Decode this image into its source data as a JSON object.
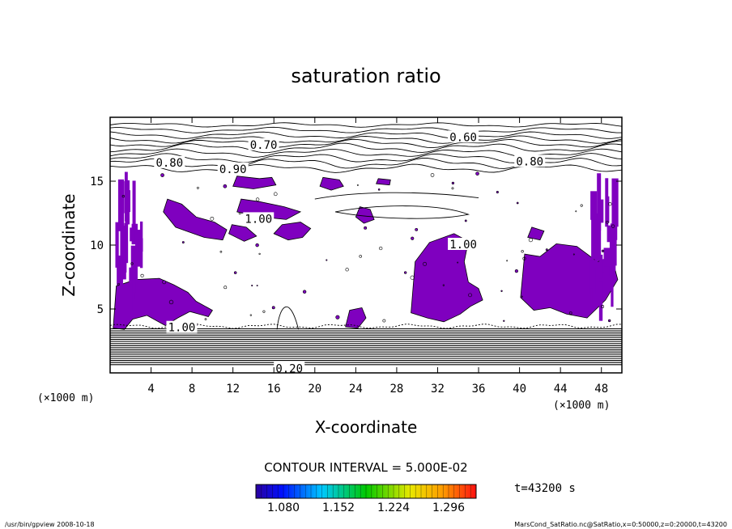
{
  "chart_data": {
    "type": "heatmap",
    "title": "saturation ratio",
    "xlabel": "X-coordinate",
    "ylabel": "Z-coordinate",
    "x_unit": "(×1000 m)",
    "y_unit": "(×1000 m)",
    "xlim": [
      0,
      50
    ],
    "ylim": [
      0,
      20
    ],
    "x_ticks": [
      4,
      8,
      12,
      16,
      20,
      24,
      28,
      32,
      36,
      40,
      44,
      48
    ],
    "y_ticks": [
      5,
      10,
      15
    ],
    "contour_labels": [
      {
        "text": "0.60",
        "x": 34.5,
        "z": 18.4
      },
      {
        "text": "0.70",
        "x": 15.0,
        "z": 17.8
      },
      {
        "text": "0.80",
        "x": 5.8,
        "z": 16.4
      },
      {
        "text": "0.90",
        "x": 12.0,
        "z": 15.9
      },
      {
        "text": "0.80",
        "x": 41.0,
        "z": 16.5
      },
      {
        "text": "1.00",
        "x": 14.5,
        "z": 12.0
      },
      {
        "text": "1.00",
        "x": 34.5,
        "z": 10.0
      },
      {
        "text": "1.00",
        "x": 7.0,
        "z": 3.5
      },
      {
        "text": "0.20",
        "x": 17.5,
        "z": 0.3
      }
    ],
    "contour_interval_label": "CONTOUR INTERVAL = 5.000E-02",
    "colorbar_ticks": [
      "1.080",
      "1.152",
      "1.224",
      "1.296"
    ],
    "colorbar_range": [
      1.044,
      1.332
    ],
    "fill_color": "#7f00bf",
    "time_label": "t=43200 s"
  },
  "footer": {
    "left": "/usr/bin/gpview   2008-10-18",
    "right": "MarsCond_SatRatio.nc@SatRatio,x=0:50000,z=0:20000,t=43200"
  }
}
